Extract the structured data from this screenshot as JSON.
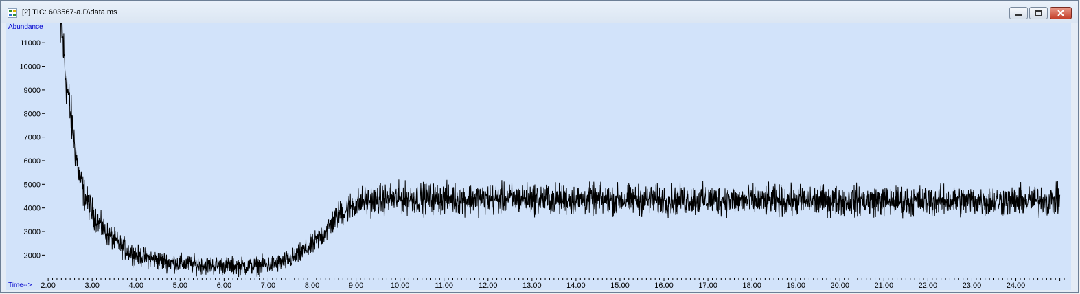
{
  "window": {
    "title": "[2] TIC: 603567-a.D\\data.ms",
    "app_icon": "chromatogram-icon",
    "controls": [
      "minimize-icon",
      "maximize-icon",
      "close-icon"
    ]
  },
  "colors": {
    "plot_background": "#d2e3fa",
    "axis_label": "#0000cc",
    "trace": "#000000"
  },
  "chart_data": {
    "type": "line",
    "title": "",
    "xlabel": "Time-->",
    "ylabel": "Abundance",
    "xlim": [
      1.92,
      25.1
    ],
    "ylim": [
      1050,
      11850
    ],
    "x_tick_labels": [
      "2.00",
      "3.00",
      "4.00",
      "5.00",
      "6.00",
      "7.00",
      "8.00",
      "9.00",
      "10.00",
      "11.00",
      "12.00",
      "13.00",
      "14.00",
      "15.00",
      "16.00",
      "17.00",
      "18.00",
      "19.00",
      "20.00",
      "21.00",
      "22.00",
      "23.00",
      "24.00"
    ],
    "y_tick_labels": [
      "2000",
      "3000",
      "4000",
      "5000",
      "6000",
      "7000",
      "8000",
      "9000",
      "10000",
      "11000"
    ],
    "series": [
      {
        "x": [
          2.28,
          2.3,
          2.4,
          2.5,
          2.6,
          2.7,
          2.8,
          2.9,
          3.0,
          3.2,
          3.4,
          3.6,
          3.8,
          4.0,
          4.3,
          4.6,
          5.0,
          5.5,
          6.0,
          6.5,
          7.0,
          7.3,
          7.6,
          8.0,
          8.3,
          8.6,
          8.9,
          9.2,
          9.5,
          10.0,
          11.0,
          12.0,
          13.0,
          14.0,
          15.0,
          16.0,
          17.0,
          18.0,
          19.0,
          20.0,
          21.0,
          22.0,
          23.0,
          24.0,
          25.0
        ],
        "y": [
          10900,
          11800,
          9600,
          8100,
          6700,
          5400,
          4700,
          4200,
          3850,
          3200,
          2800,
          2450,
          2200,
          2000,
          1850,
          1750,
          1650,
          1580,
          1550,
          1520,
          1580,
          1680,
          1900,
          2400,
          3000,
          3700,
          4100,
          4300,
          4350,
          4400,
          4400,
          4380,
          4400,
          4350,
          4350,
          4320,
          4350,
          4300,
          4300,
          4300,
          4300,
          4300,
          4300,
          4300,
          4300
        ]
      }
    ]
  }
}
